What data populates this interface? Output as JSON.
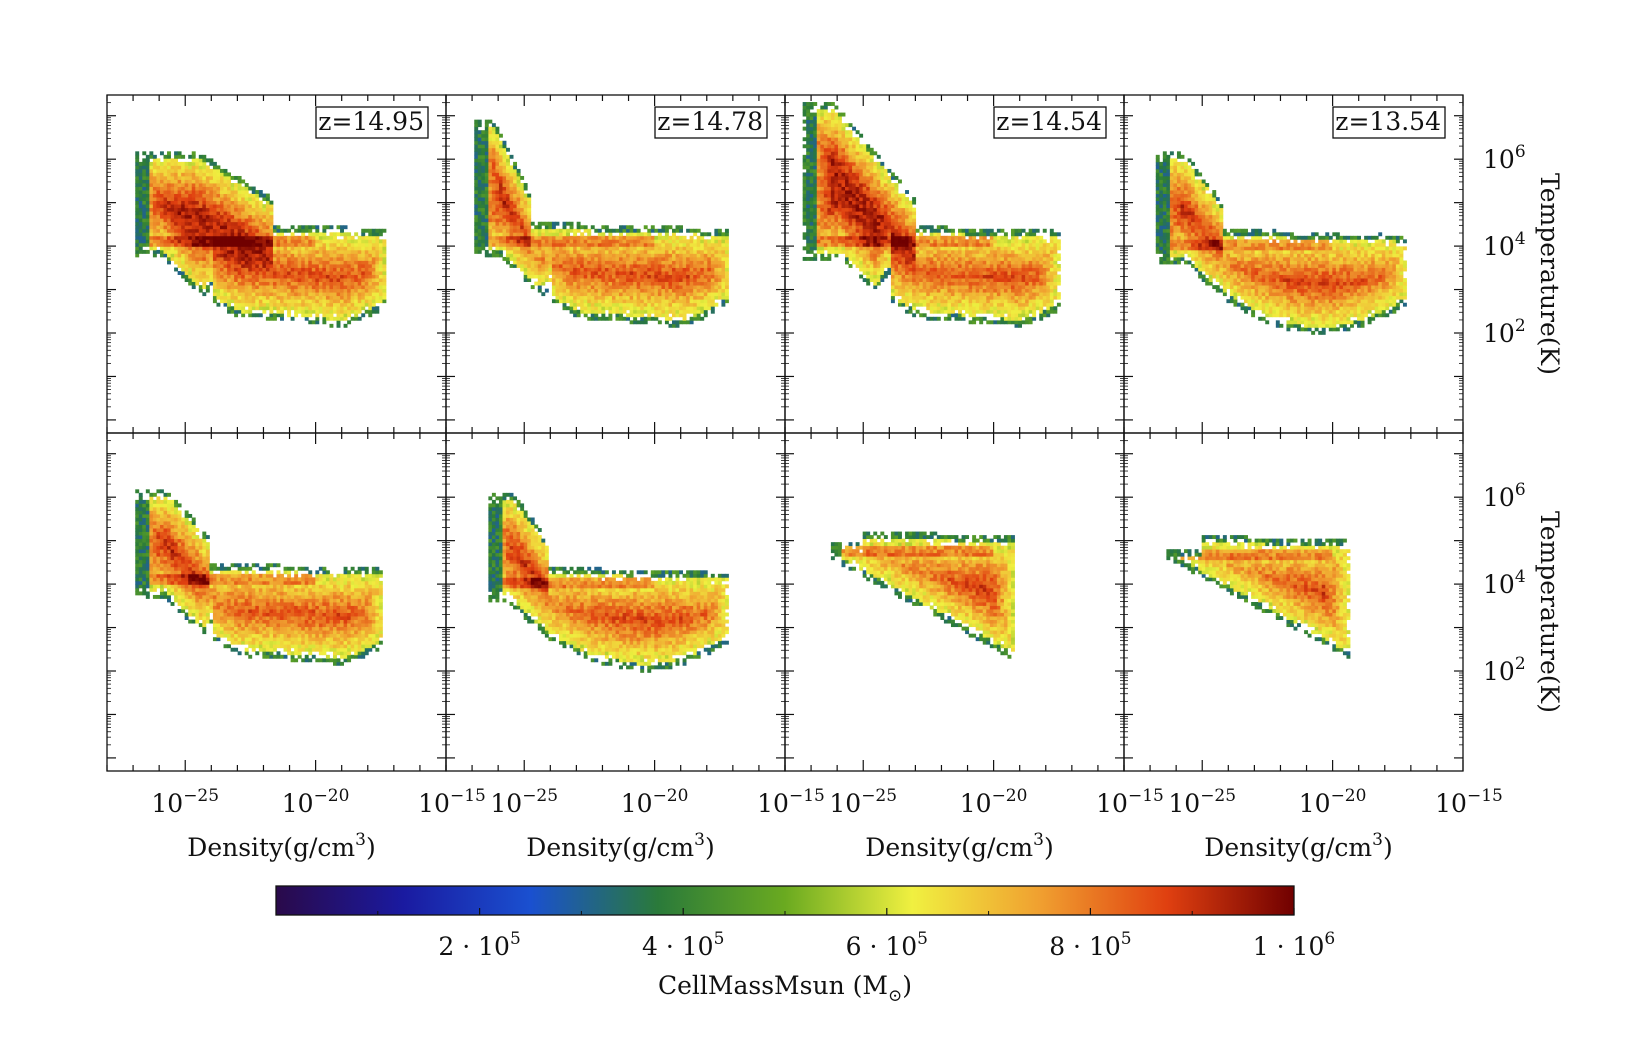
{
  "chart_data": {
    "type": "heatmap",
    "layout": "2 rows x 4 columns of density-temperature phase diagrams, shared axes",
    "x_axis": {
      "label": "Density(g/cm",
      "label_exp": "3",
      "label_close": ")",
      "scale": "log",
      "range": [
        1e-28,
        1e-15
      ],
      "ticks": [
        {
          "base": "10",
          "exp": "−25",
          "value": 1e-25
        },
        {
          "base": "10",
          "exp": "−20",
          "value": 1e-20
        },
        {
          "base": "10",
          "exp": "−15",
          "value": 1e-15
        }
      ]
    },
    "y_axis": {
      "label": "Temperature(K)",
      "scale": "log",
      "range": [
        0.5,
        30000000.0
      ],
      "ticks": [
        {
          "base": "10",
          "exp": "2",
          "value": 100
        },
        {
          "base": "10",
          "exp": "4",
          "value": 10000
        },
        {
          "base": "10",
          "exp": "6",
          "value": 1000000
        }
      ]
    },
    "colorbar": {
      "label": "CellMassMsun (M",
      "label_sub": "⊙",
      "label_close": ")",
      "range": [
        0,
        1000000
      ],
      "colors": [
        "#2a0a4a",
        "#1a1aa0",
        "#1a50d0",
        "#2a7a3a",
        "#6aaa20",
        "#f0f040",
        "#f0a030",
        "#e04010",
        "#700000"
      ],
      "ticks": [
        {
          "coef": "2",
          "exp": "5",
          "value": 200000
        },
        {
          "coef": "4",
          "exp": "5",
          "value": 400000
        },
        {
          "coef": "6",
          "exp": "5",
          "value": 600000
        },
        {
          "coef": "8",
          "exp": "5",
          "value": 800000
        },
        {
          "coef": "1",
          "exp": "6",
          "value": 1000000
        }
      ]
    },
    "panels": [
      {
        "row": 0,
        "col": 0,
        "redshift_label": "z=14.95",
        "shape": "a",
        "hot_tip": {
          "x": -22.8,
          "y": 6.2
        },
        "ridge_y": 4.15,
        "max_x": -17.3,
        "min_x": -26.9,
        "diag_low": true
      },
      {
        "row": 0,
        "col": 1,
        "redshift_label": "z=14.78",
        "shape": "b",
        "hot_tip": {
          "x": -25.9,
          "y": 6.9
        },
        "ridge_y": 4.15,
        "max_x": -17.1,
        "min_x": -26.9,
        "diag_low": true
      },
      {
        "row": 0,
        "col": 2,
        "redshift_label": "z=14.54",
        "shape": "c",
        "hot_tip": {
          "x": -24.2,
          "y": 7.3
        },
        "ridge_y": 4.1,
        "max_x": -17.5,
        "min_x": -27.3,
        "diag_low": true
      },
      {
        "row": 0,
        "col": 3,
        "redshift_label": "z=13.54",
        "shape": "d",
        "hot_tip": {
          "x": -25.4,
          "y": 6.2
        },
        "ridge_y": 4.0,
        "max_x": -17.2,
        "min_x": -26.8,
        "diag_low": false
      },
      {
        "row": 1,
        "col": 0,
        "redshift_label": "",
        "shape": "e",
        "hot_tip": {
          "x": -25.3,
          "y": 6.2
        },
        "ridge_y": 4.1,
        "max_x": -17.4,
        "min_x": -26.9,
        "diag_low": true
      },
      {
        "row": 1,
        "col": 1,
        "redshift_label": "",
        "shape": "f",
        "hot_tip": {
          "x": -25.3,
          "y": 6.1
        },
        "ridge_y": 4.0,
        "max_x": -17.2,
        "min_x": -26.4,
        "diag_low": false
      },
      {
        "row": 1,
        "col": 2,
        "redshift_label": "",
        "shape": "g",
        "hot_tip": {
          "x": -26.2,
          "y": 5.0
        },
        "ridge_y": 4.8,
        "max_x": -19.2,
        "min_x": -26.3,
        "diag_low": false
      },
      {
        "row": 1,
        "col": 3,
        "redshift_label": "",
        "shape": "h",
        "hot_tip": {
          "x": -26.2,
          "y": 4.8
        },
        "ridge_y": 4.7,
        "max_x": -19.4,
        "min_x": -26.4,
        "diag_low": false
      }
    ]
  }
}
